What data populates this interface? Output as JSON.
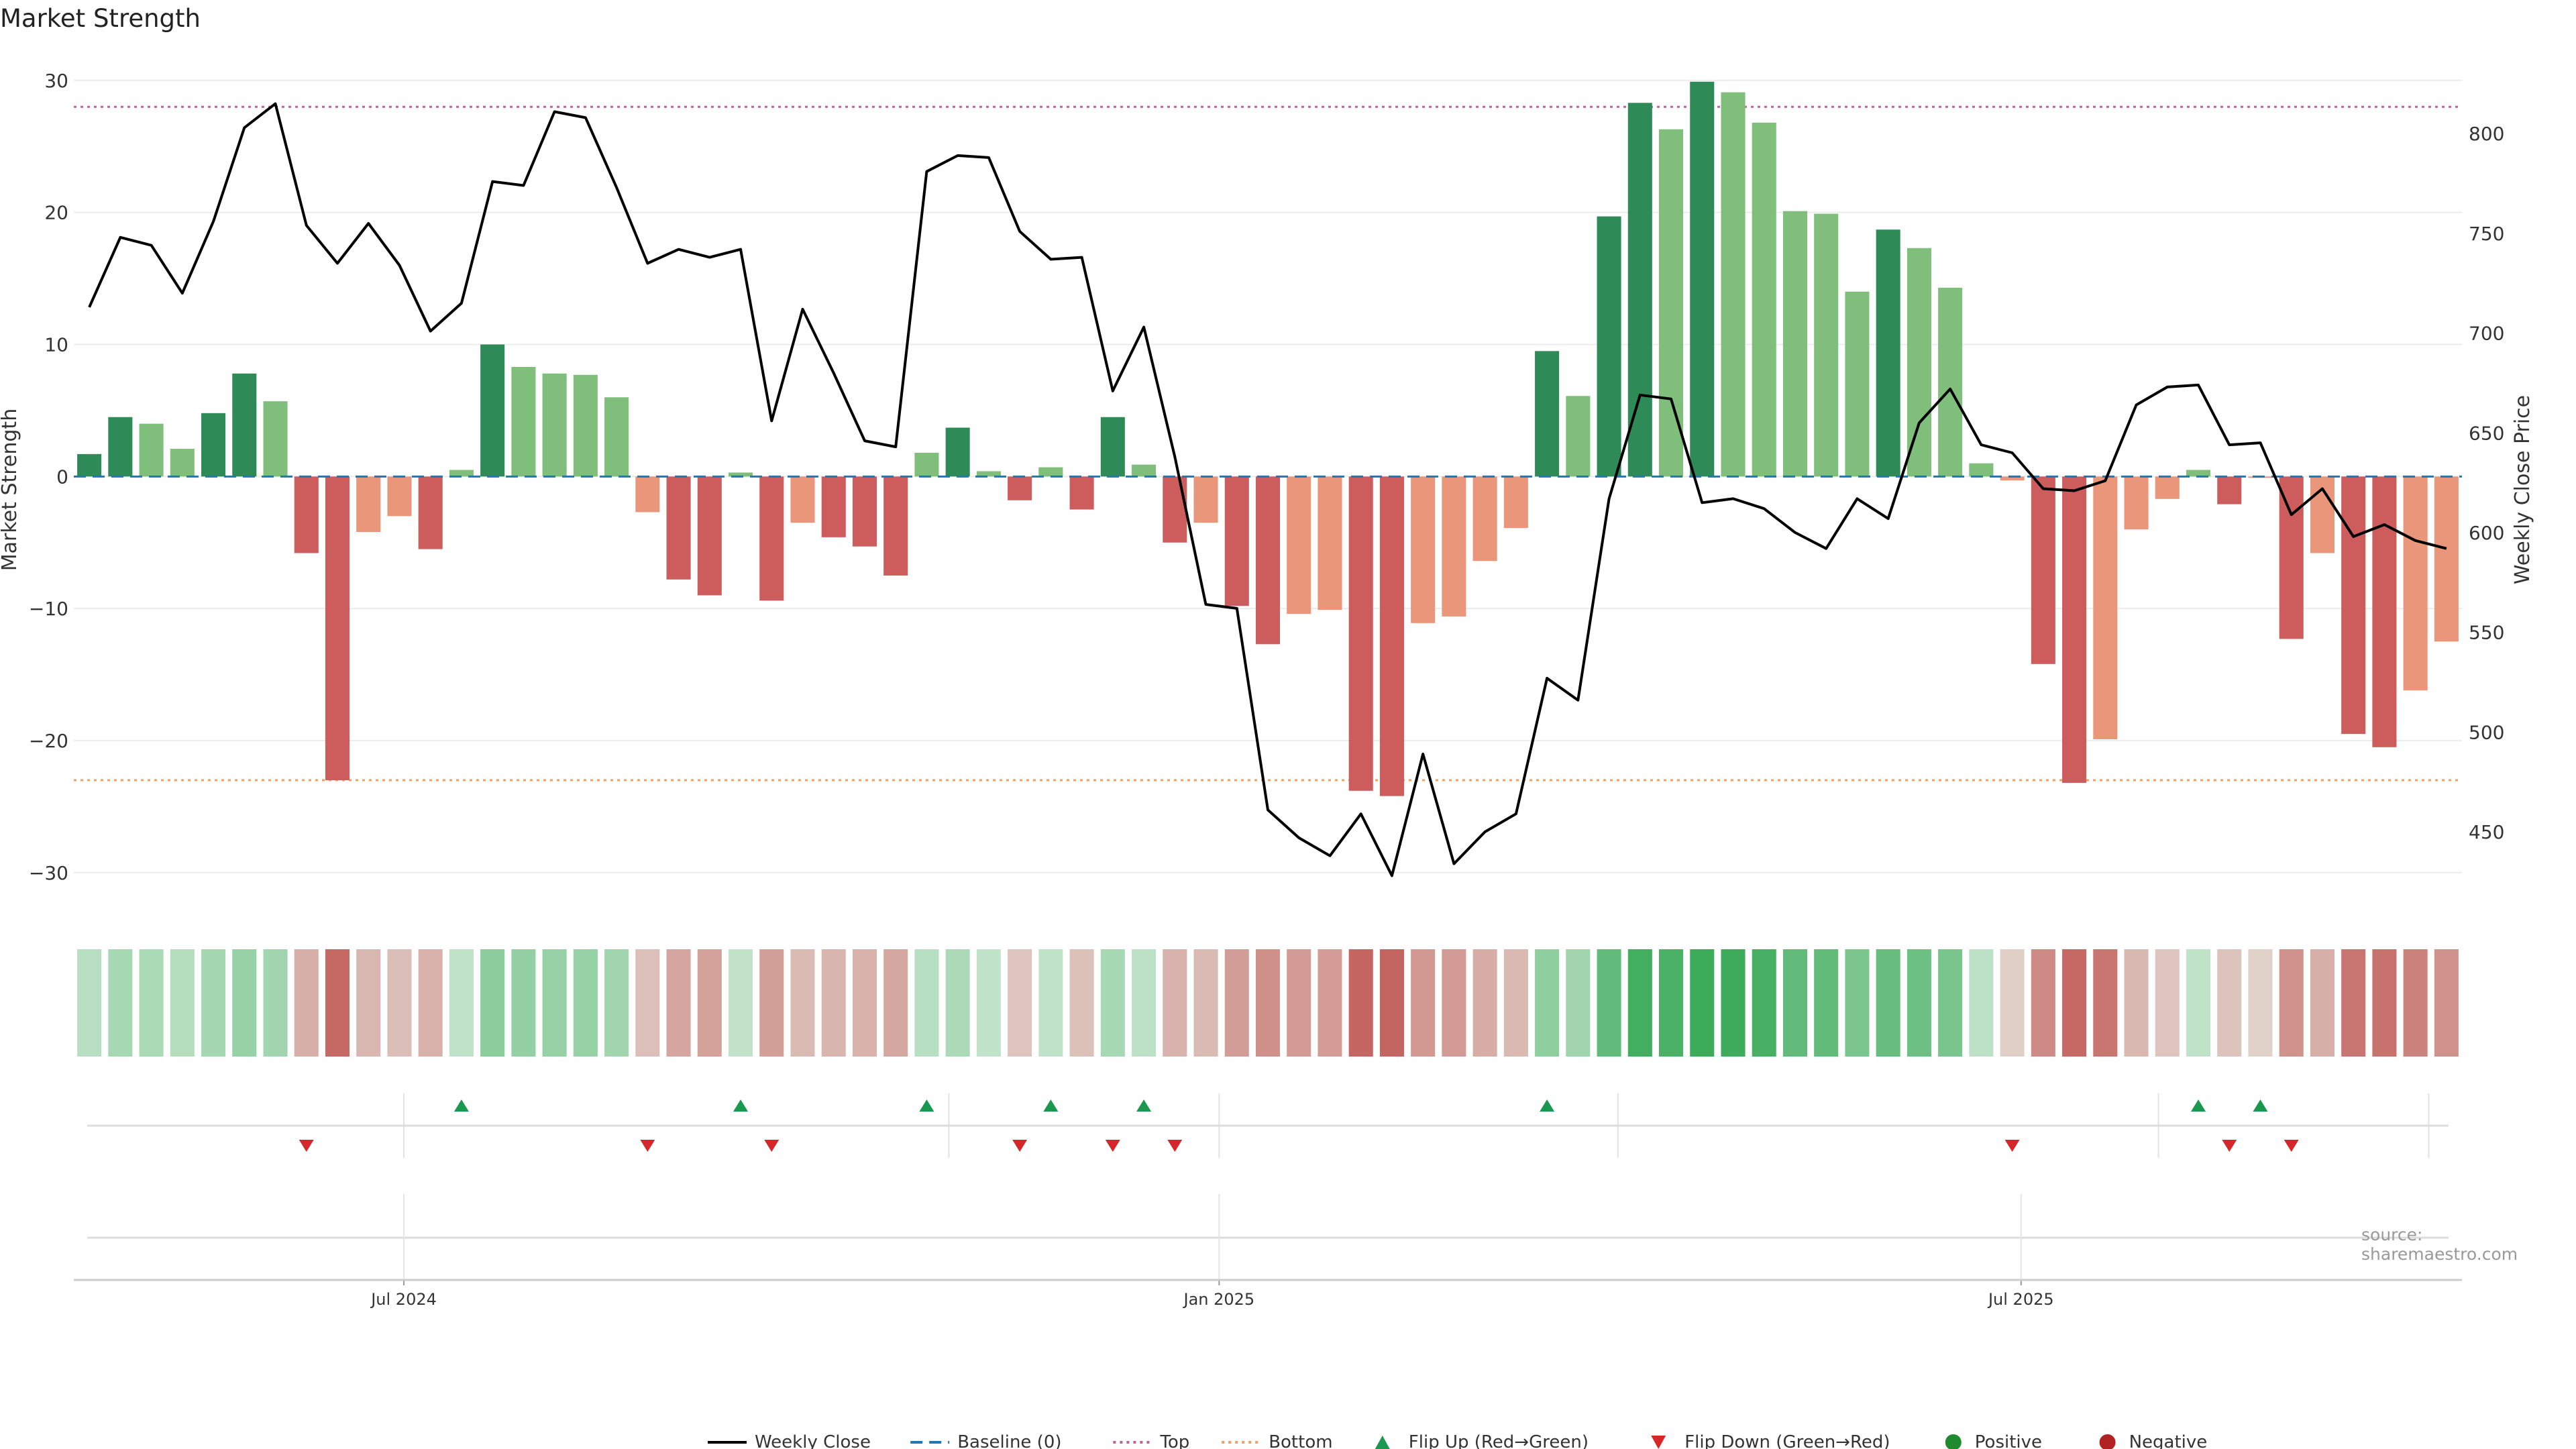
{
  "title": "Market Strength",
  "source": "source: sharemaestro.com",
  "colors": {
    "pos_strong": "#2e8b57",
    "pos_light": "#7fbf7b",
    "neg_strong": "#cd5c5c",
    "neg_light": "#e9967a",
    "line": "#000000",
    "baseline": "#1f77b4",
    "top": "#c0609f",
    "bottom": "#f0a060",
    "flip_up": "#1a9850",
    "flip_down": "#d62728"
  },
  "chart_data": {
    "type": "bar",
    "x_start": "2024-04-21",
    "x_step_days": 7,
    "xticks": [
      {
        "label": "Jul 2024",
        "date": "2024-07-01"
      },
      {
        "label": "Jan 2025",
        "date": "2025-01-01"
      },
      {
        "label": "Jul 2025",
        "date": "2025-07-01"
      }
    ],
    "ylabel_left": "Market Strength",
    "ylabel_right": "Weekly Close Price",
    "ylim_left": [
      -32.5,
      30.5
    ],
    "ylim_right": [
      413,
      830
    ],
    "yticks_left": [
      30,
      20,
      10,
      0,
      -10,
      -20,
      -30
    ],
    "yticks_right": [
      800,
      750,
      700,
      650,
      600,
      550,
      500,
      450
    ],
    "top_threshold": 28,
    "bottom_threshold": -23,
    "baseline": 0,
    "series": [
      {
        "name": "Market Strength",
        "values": [
          1.7,
          4.5,
          4.0,
          2.1,
          4.8,
          7.8,
          5.7,
          -5.8,
          -23.0,
          -4.2,
          -3.0,
          -5.5,
          0.5,
          10.0,
          8.3,
          7.8,
          7.7,
          6.0,
          -2.7,
          -7.8,
          -9.0,
          0.3,
          -9.4,
          -3.5,
          -4.6,
          -5.3,
          -7.5,
          1.8,
          3.7,
          0.4,
          -1.8,
          0.7,
          -2.5,
          4.5,
          0.9,
          -5.0,
          -3.5,
          -9.8,
          -12.7,
          -10.4,
          -10.1,
          -23.8,
          -24.2,
          -11.1,
          -10.6,
          -6.4,
          -3.9,
          9.5,
          6.1,
          19.7,
          28.3,
          26.3,
          29.9,
          29.1,
          26.8,
          20.1,
          19.9,
          14.0,
          18.7,
          17.3,
          14.3,
          1.0,
          -0.3,
          -14.2,
          -23.2,
          -19.9,
          -4.0,
          -1.7,
          0.5,
          -2.1,
          -0.1,
          -12.3,
          -5.8,
          -19.5,
          -20.5,
          -16.2,
          -12.5
        ]
      },
      {
        "name": "Weekly Close",
        "values": [
          713,
          748,
          744,
          720,
          756,
          803,
          815,
          754,
          735,
          755,
          734,
          701,
          715,
          776,
          774,
          811,
          808,
          773,
          735,
          742,
          738,
          742,
          656,
          712,
          680,
          646,
          643,
          781,
          789,
          788,
          751,
          737,
          738,
          671,
          703,
          638,
          564,
          562,
          461,
          447,
          438,
          459,
          428,
          489,
          434,
          450,
          459,
          527,
          516,
          617,
          669,
          667,
          615,
          617,
          612,
          600,
          592,
          617,
          607,
          655,
          672,
          644,
          640,
          622,
          621,
          626,
          664,
          673,
          674,
          644,
          645,
          609,
          622,
          598,
          604,
          596,
          592
        ]
      }
    ],
    "heat_values": [
      1.7,
      4.5,
      4.0,
      2.1,
      4.8,
      7.8,
      5.7,
      -5.8,
      -23.0,
      -4.2,
      -3.0,
      -5.5,
      0.5,
      10.0,
      8.3,
      7.8,
      7.7,
      6.0,
      -2.7,
      -7.8,
      -9.0,
      0.3,
      -9.4,
      -3.5,
      -4.6,
      -5.3,
      -7.5,
      1.8,
      3.7,
      0.4,
      -1.8,
      0.7,
      -2.5,
      4.5,
      0.9,
      -5.0,
      -3.5,
      -9.8,
      -12.7,
      -10.4,
      -10.1,
      -23.8,
      -24.2,
      -11.1,
      -10.6,
      -6.4,
      -3.9,
      9.5,
      6.1,
      19.7,
      28.3,
      26.3,
      29.9,
      29.1,
      26.8,
      20.1,
      19.9,
      14.0,
      18.7,
      17.3,
      14.3,
      1.0,
      -0.3,
      -14.2,
      -23.2,
      -19.9,
      -4.0,
      -1.7,
      0.5,
      -2.1,
      -0.1,
      -12.3,
      -5.8,
      -19.5,
      -20.5,
      -16.2,
      -12.5
    ],
    "flip_up_weeks": [
      12,
      21,
      27,
      31,
      34,
      47,
      68,
      70
    ],
    "flip_down_weeks": [
      7,
      18,
      22,
      30,
      33,
      35,
      62,
      69,
      71
    ]
  },
  "legend": [
    {
      "label": "Weekly Close",
      "kind": "line"
    },
    {
      "label": "Baseline (0)",
      "kind": "dash-baseline"
    },
    {
      "label": "Top",
      "kind": "dot-top"
    },
    {
      "label": "Bottom",
      "kind": "dot-bottom"
    },
    {
      "label": "Flip Up (Red→Green)",
      "kind": "tri-up"
    },
    {
      "label": "Flip Down (Green→Red)",
      "kind": "tri-down"
    },
    {
      "label": "Positive",
      "kind": "circle-pos"
    },
    {
      "label": "Negative",
      "kind": "circle-neg"
    }
  ]
}
